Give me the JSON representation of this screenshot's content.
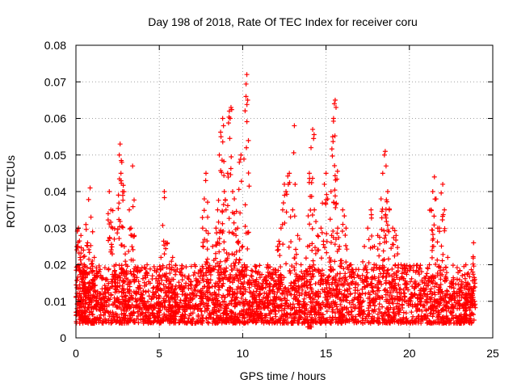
{
  "chart_data": {
    "type": "scatter",
    "title": "Day 198 of 2018, Rate Of TEC Index for receiver coru",
    "xlabel": "GPS time / hours",
    "ylabel": "ROTI / TECUs",
    "xlim": [
      0,
      25
    ],
    "ylim": [
      0,
      0.08
    ],
    "xticks": [
      0,
      5,
      10,
      15,
      20,
      25
    ],
    "yticks": [
      0,
      0.01,
      0.02,
      0.03,
      0.04,
      0.05,
      0.06,
      0.07,
      0.08
    ],
    "xtick_labels": [
      "0",
      "5",
      "10",
      "15",
      "20",
      "25"
    ],
    "ytick_labels": [
      "0",
      "0.01",
      "0.02",
      "0.03",
      "0.04",
      "0.05",
      "0.06",
      "0.07",
      "0.08"
    ],
    "grid": true,
    "marker": "+",
    "color": "#ff0000",
    "points": [
      [
        0.05,
        0.007
      ],
      [
        0.1,
        0.025
      ],
      [
        0.15,
        0.03
      ],
      [
        0.2,
        0.012
      ],
      [
        0.25,
        0.022
      ],
      [
        0.3,
        0.028
      ],
      [
        0.35,
        0.018
      ],
      [
        0.4,
        0.005
      ],
      [
        0.45,
        0.024
      ],
      [
        0.5,
        0.02
      ],
      [
        0.6,
        0.031
      ],
      [
        0.7,
        0.026
      ],
      [
        0.8,
        0.015
      ],
      [
        0.9,
        0.033
      ],
      [
        1.0,
        0.029
      ],
      [
        1.1,
        0.022
      ],
      [
        1.2,
        0.01
      ],
      [
        0.85,
        0.041
      ],
      [
        1.3,
        0.012
      ],
      [
        1.5,
        0.009
      ],
      [
        1.7,
        0.011
      ],
      [
        1.9,
        0.013
      ],
      [
        2.0,
        0.04
      ],
      [
        2.1,
        0.035
      ],
      [
        2.2,
        0.03
      ],
      [
        2.3,
        0.027
      ],
      [
        2.4,
        0.02
      ],
      [
        2.5,
        0.015
      ],
      [
        2.6,
        0.05
      ],
      [
        2.65,
        0.053
      ],
      [
        2.7,
        0.045
      ],
      [
        2.75,
        0.048
      ],
      [
        2.8,
        0.04
      ],
      [
        2.9,
        0.025
      ],
      [
        3.0,
        0.02
      ],
      [
        3.2,
        0.035
      ],
      [
        3.3,
        0.03
      ],
      [
        3.4,
        0.047
      ],
      [
        3.5,
        0.028
      ],
      [
        3.7,
        0.018
      ],
      [
        3.9,
        0.012
      ],
      [
        4.1,
        0.01
      ],
      [
        4.3,
        0.008
      ],
      [
        4.5,
        0.009
      ],
      [
        4.7,
        0.012
      ],
      [
        4.9,
        0.015
      ],
      [
        5.1,
        0.022
      ],
      [
        5.3,
        0.04
      ],
      [
        5.4,
        0.026
      ],
      [
        5.6,
        0.02
      ],
      [
        5.8,
        0.022
      ],
      [
        6.0,
        0.012
      ],
      [
        6.3,
        0.014
      ],
      [
        6.6,
        0.01
      ],
      [
        6.9,
        0.011
      ],
      [
        7.2,
        0.009
      ],
      [
        7.5,
        0.013
      ],
      [
        7.6,
        0.03
      ],
      [
        7.7,
        0.038
      ],
      [
        7.8,
        0.045
      ],
      [
        7.9,
        0.033
      ],
      [
        8.0,
        0.018
      ],
      [
        8.2,
        0.025
      ],
      [
        8.4,
        0.03
      ],
      [
        8.5,
        0.035
      ],
      [
        8.6,
        0.05
      ],
      [
        8.7,
        0.055
      ],
      [
        8.8,
        0.06
      ],
      [
        8.85,
        0.058
      ],
      [
        8.9,
        0.04
      ],
      [
        9.0,
        0.035
      ],
      [
        9.1,
        0.045
      ],
      [
        9.2,
        0.062
      ],
      [
        9.25,
        0.06
      ],
      [
        9.3,
        0.063
      ],
      [
        9.4,
        0.04
      ],
      [
        9.5,
        0.038
      ],
      [
        9.6,
        0.028
      ],
      [
        9.7,
        0.03
      ],
      [
        9.8,
        0.048
      ],
      [
        9.9,
        0.05
      ],
      [
        10.0,
        0.025
      ],
      [
        10.1,
        0.02
      ],
      [
        10.2,
        0.066
      ],
      [
        10.25,
        0.072
      ],
      [
        10.3,
        0.065
      ],
      [
        10.4,
        0.015
      ],
      [
        10.6,
        0.012
      ],
      [
        10.8,
        0.018
      ],
      [
        11.0,
        0.014
      ],
      [
        11.3,
        0.016
      ],
      [
        11.6,
        0.013
      ],
      [
        11.9,
        0.012
      ],
      [
        12.1,
        0.025
      ],
      [
        12.3,
        0.03
      ],
      [
        12.4,
        0.035
      ],
      [
        12.5,
        0.042
      ],
      [
        12.6,
        0.04
      ],
      [
        12.8,
        0.045
      ],
      [
        13.0,
        0.035
      ],
      [
        13.1,
        0.058
      ],
      [
        13.3,
        0.028
      ],
      [
        13.5,
        0.02
      ],
      [
        13.7,
        0.015
      ],
      [
        13.9,
        0.025
      ],
      [
        14.0,
        0.045
      ],
      [
        14.1,
        0.052
      ],
      [
        14.2,
        0.057
      ],
      [
        14.3,
        0.035
      ],
      [
        14.5,
        0.028
      ],
      [
        14.7,
        0.03
      ],
      [
        14.9,
        0.042
      ],
      [
        15.0,
        0.045
      ],
      [
        15.1,
        0.038
      ],
      [
        15.3,
        0.04
      ],
      [
        15.4,
        0.055
      ],
      [
        15.45,
        0.06
      ],
      [
        15.5,
        0.064
      ],
      [
        15.55,
        0.065
      ],
      [
        15.6,
        0.063
      ],
      [
        15.7,
        0.03
      ],
      [
        15.8,
        0.025
      ],
      [
        16.0,
        0.035
      ],
      [
        16.2,
        0.03
      ],
      [
        16.5,
        0.02
      ],
      [
        16.8,
        0.015
      ],
      [
        17.0,
        0.012
      ],
      [
        17.3,
        0.025
      ],
      [
        17.5,
        0.03
      ],
      [
        17.7,
        0.035
      ],
      [
        17.9,
        0.025
      ],
      [
        18.1,
        0.028
      ],
      [
        18.3,
        0.038
      ],
      [
        18.4,
        0.045
      ],
      [
        18.5,
        0.05
      ],
      [
        18.55,
        0.051
      ],
      [
        18.6,
        0.047
      ],
      [
        18.7,
        0.04
      ],
      [
        18.8,
        0.035
      ],
      [
        19.0,
        0.03
      ],
      [
        19.2,
        0.028
      ],
      [
        19.5,
        0.02
      ],
      [
        19.8,
        0.015
      ],
      [
        20.1,
        0.012
      ],
      [
        20.4,
        0.014
      ],
      [
        20.7,
        0.012
      ],
      [
        21.0,
        0.015
      ],
      [
        21.2,
        0.02
      ],
      [
        21.3,
        0.035
      ],
      [
        21.4,
        0.04
      ],
      [
        21.5,
        0.044
      ],
      [
        21.6,
        0.038
      ],
      [
        21.7,
        0.03
      ],
      [
        21.8,
        0.03
      ],
      [
        22.0,
        0.042
      ],
      [
        22.1,
        0.035
      ],
      [
        22.3,
        0.022
      ],
      [
        22.5,
        0.015
      ],
      [
        22.7,
        0.012
      ],
      [
        22.9,
        0.01
      ],
      [
        23.1,
        0.013
      ],
      [
        23.3,
        0.011
      ],
      [
        23.5,
        0.015
      ],
      [
        23.7,
        0.012
      ],
      [
        23.8,
        0.018
      ],
      [
        23.85,
        0.026
      ],
      [
        23.9,
        0.01
      ],
      [
        0.3,
        0.006
      ],
      [
        1.0,
        0.004
      ],
      [
        3.0,
        0.01
      ],
      [
        6.0,
        0.007
      ],
      [
        7.0,
        0.004
      ],
      [
        9.0,
        0.008
      ],
      [
        11.0,
        0.006
      ],
      [
        13.0,
        0.004
      ],
      [
        14.0,
        0.003
      ],
      [
        16.0,
        0.006
      ],
      [
        19.0,
        0.005
      ],
      [
        21.0,
        0.006
      ],
      [
        23.0,
        0.004
      ]
    ],
    "background_band": {
      "description_hidden": true,
      "dense_min": 0.004,
      "dense_max": 0.02
    }
  }
}
